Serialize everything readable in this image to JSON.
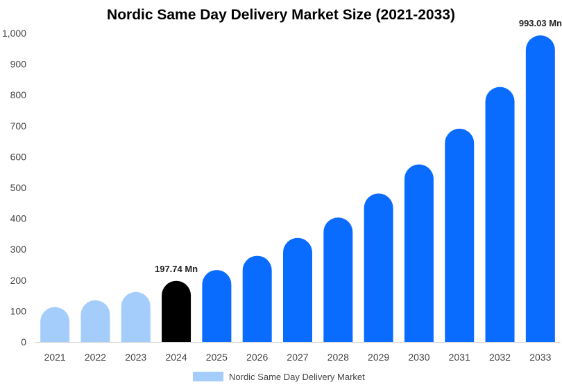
{
  "chart_data": {
    "type": "bar",
    "title": "Nordic Same Day Delivery Market Size (2021-2033)",
    "xlabel": "",
    "ylabel": "",
    "ylim": [
      0,
      1000
    ],
    "yticks": [
      0,
      100,
      200,
      300,
      400,
      500,
      600,
      700,
      800,
      900,
      1000
    ],
    "ytick_labels": [
      "0",
      "100",
      "200",
      "300",
      "400",
      "500",
      "600",
      "700",
      "800",
      "900",
      "1,000"
    ],
    "categories": [
      "2021",
      "2022",
      "2023",
      "2024",
      "2025",
      "2026",
      "2027",
      "2028",
      "2029",
      "2030",
      "2031",
      "2032",
      "2033"
    ],
    "series": [
      {
        "name": "Nordic Same Day Delivery Market",
        "values": [
          113,
          135,
          162,
          197.74,
          233,
          279,
          337,
          403,
          481,
          575,
          691,
          826,
          993.03
        ]
      }
    ],
    "bar_colors": [
      "#a5cdfb",
      "#a5cdfb",
      "#a5cdfb",
      "#000000",
      "#0a6cff",
      "#0a6cff",
      "#0a6cff",
      "#0a6cff",
      "#0a6cff",
      "#0a6cff",
      "#0a6cff",
      "#0a6cff",
      "#0a6cff"
    ],
    "data_labels": [
      {
        "index": 3,
        "text": "197.74 Mn"
      },
      {
        "index": 12,
        "text": "993.03 Mn"
      }
    ],
    "grid": false,
    "legend": {
      "placement": "bottom-center",
      "label": "Nordic Same Day Delivery Market",
      "color": "#a5cdfb"
    }
  }
}
